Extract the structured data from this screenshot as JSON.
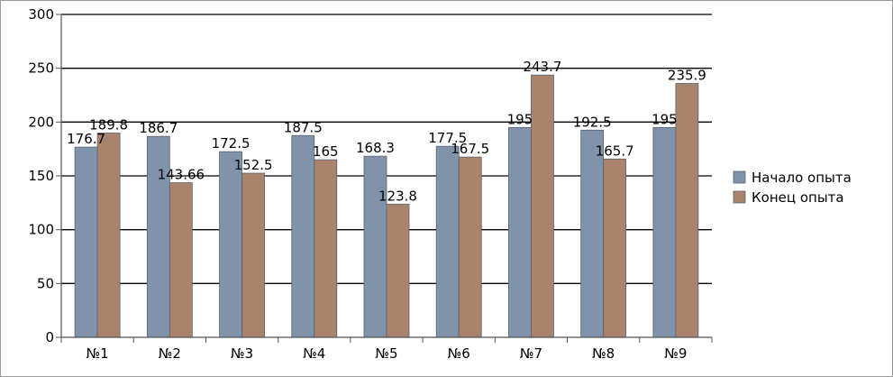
{
  "chart_data": {
    "type": "bar",
    "categories": [
      "№1",
      "№2",
      "№3",
      "№4",
      "№5",
      "№6",
      "№7",
      "№8",
      "№9"
    ],
    "series": [
      {
        "name": "Начало опыта",
        "values": [
          176.7,
          186.7,
          172.5,
          187.5,
          168.3,
          177.5,
          195,
          192.5,
          195
        ],
        "labels": [
          "176.7",
          "186.7",
          "172.5",
          "187.5",
          "168.3",
          "177.5",
          "195",
          "192.5",
          "195"
        ],
        "color": "#7f93ab"
      },
      {
        "name": "Конец опыта",
        "values": [
          189.8,
          143.66,
          152.5,
          165,
          123.8,
          167.5,
          243.7,
          165.7,
          235.9
        ],
        "labels": [
          "189.8",
          "143.66",
          "152.5",
          "165",
          "123.8",
          "167.5",
          "243.7",
          "165.7",
          "235.9"
        ],
        "color": "#a9836b"
      }
    ],
    "ylim": [
      0,
      300
    ],
    "yticks": [
      0,
      50,
      100,
      150,
      200,
      250,
      300
    ],
    "grid": true,
    "legend": "right",
    "title": "",
    "xlabel": "",
    "ylabel": ""
  }
}
